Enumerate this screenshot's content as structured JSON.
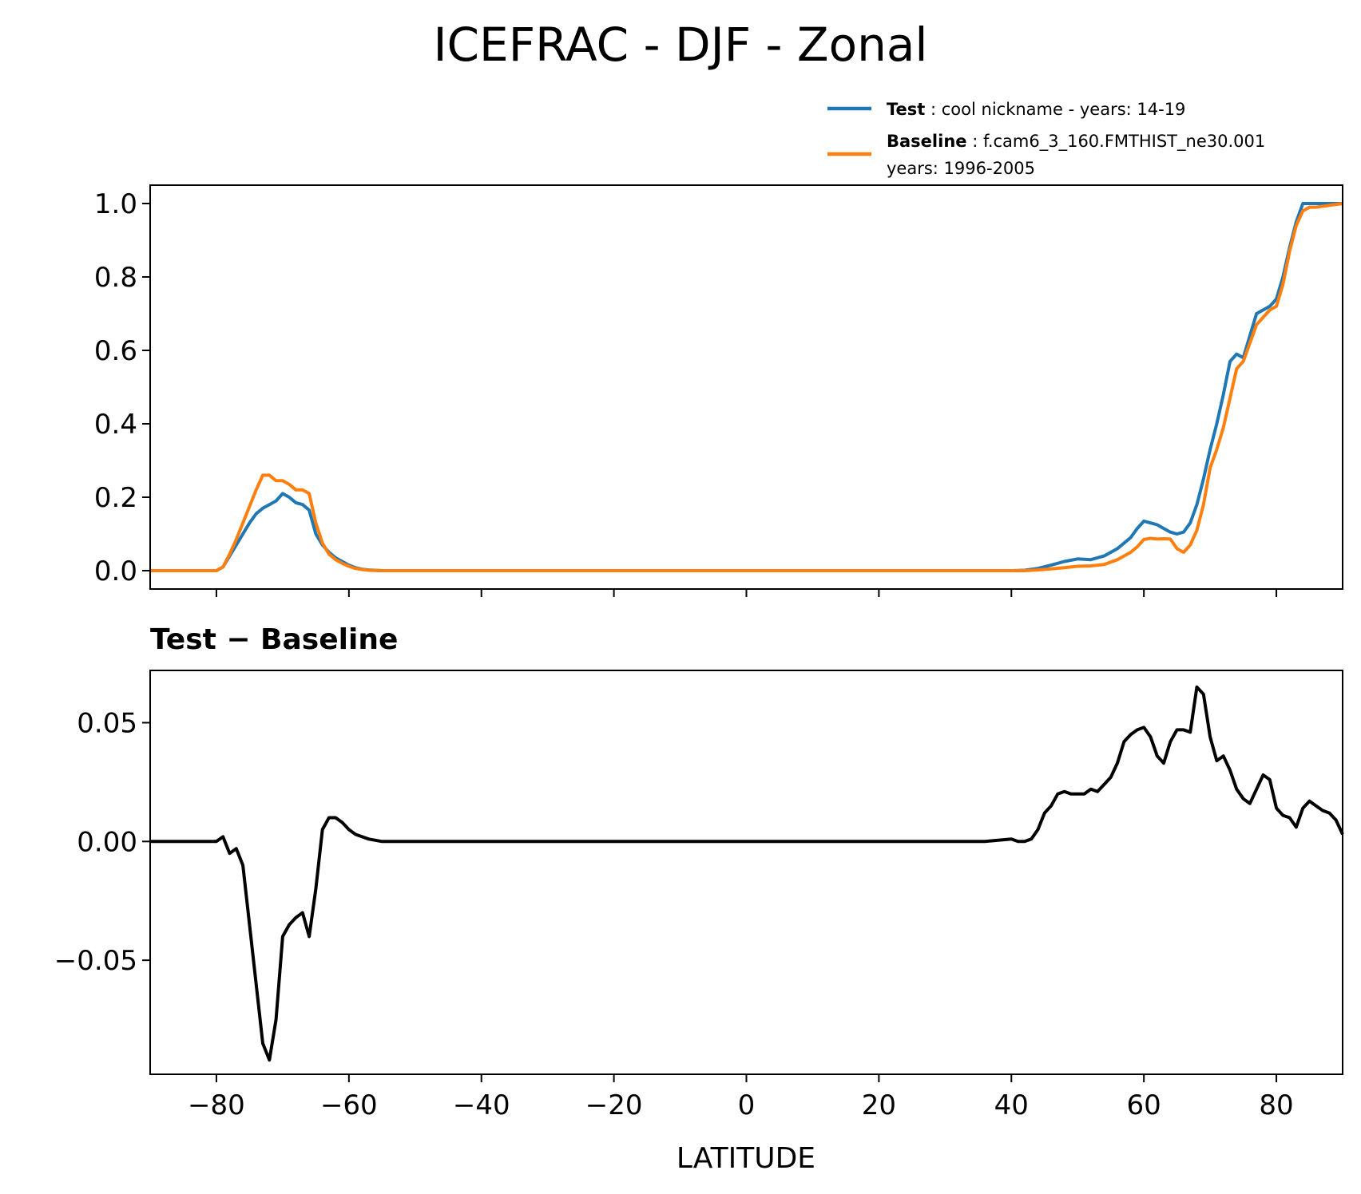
{
  "title": "ICEFRAC - DJF - Zonal",
  "legend": {
    "test_label": "Test",
    "test_text": ": cool nickname - years: 14-19",
    "baseline_label": "Baseline",
    "baseline_text": ": f.cam6_3_160.FMTHIST_ne30.001",
    "baseline_text2": "years: 1996-2005"
  },
  "colors": {
    "test": "#1f77b4",
    "baseline": "#ff7f0e",
    "diff": "#000000"
  },
  "chart_data": [
    {
      "type": "line",
      "xlim": [
        -90,
        90
      ],
      "ylim": [
        -0.05,
        1.05
      ],
      "yticks": [
        "0.0",
        "0.2",
        "0.4",
        "0.6",
        "0.8",
        "1.0"
      ],
      "ytick_values": [
        0,
        0.2,
        0.4,
        0.6,
        0.8,
        1.0
      ],
      "legend_position": "above top-right",
      "series": [
        {
          "name": "Test",
          "x": [
            -90,
            -80,
            -79,
            -78,
            -77,
            -76,
            -75,
            -74,
            -73,
            -72,
            -71,
            -70,
            -69,
            -68,
            -67,
            -66,
            -65,
            -64,
            -63,
            -62,
            -61,
            -60,
            -59,
            -58,
            -57,
            -55,
            -50,
            -40,
            -20,
            0,
            20,
            40,
            42,
            44,
            46,
            48,
            50,
            52,
            54,
            56,
            58,
            59,
            60,
            61,
            62,
            63,
            64,
            65,
            66,
            67,
            68,
            69,
            70,
            71,
            72,
            73,
            74,
            75,
            76,
            77,
            78,
            79,
            80,
            81,
            82,
            83,
            84,
            85,
            86,
            88,
            90
          ],
          "y": [
            0,
            0,
            0.01,
            0.04,
            0.07,
            0.1,
            0.13,
            0.155,
            0.17,
            0.18,
            0.19,
            0.21,
            0.2,
            0.185,
            0.18,
            0.165,
            0.1,
            0.07,
            0.05,
            0.035,
            0.025,
            0.015,
            0.008,
            0.004,
            0.002,
            0,
            0,
            0,
            0,
            0,
            0,
            0,
            0.001,
            0.006,
            0.015,
            0.025,
            0.032,
            0.03,
            0.04,
            0.06,
            0.09,
            0.115,
            0.135,
            0.13,
            0.125,
            0.115,
            0.105,
            0.1,
            0.105,
            0.13,
            0.18,
            0.25,
            0.33,
            0.4,
            0.48,
            0.57,
            0.59,
            0.58,
            0.64,
            0.7,
            0.71,
            0.72,
            0.74,
            0.8,
            0.88,
            0.95,
            1.0,
            1.0,
            1.0,
            1.0,
            1.0
          ]
        },
        {
          "name": "Baseline",
          "x": [
            -90,
            -80,
            -79,
            -78,
            -77,
            -76,
            -75,
            -74,
            -73,
            -72,
            -71,
            -70,
            -69,
            -68,
            -67,
            -66,
            -65,
            -64,
            -63,
            -62,
            -61,
            -60,
            -59,
            -58,
            -57,
            -55,
            -50,
            -40,
            -20,
            0,
            20,
            40,
            42,
            44,
            46,
            48,
            50,
            52,
            54,
            56,
            58,
            59,
            60,
            61,
            62,
            63,
            64,
            65,
            66,
            67,
            68,
            69,
            70,
            71,
            72,
            73,
            74,
            75,
            76,
            77,
            78,
            79,
            80,
            81,
            82,
            83,
            84,
            85,
            86,
            88,
            90
          ],
          "y": [
            0,
            0,
            0.01,
            0.045,
            0.085,
            0.13,
            0.175,
            0.22,
            0.26,
            0.26,
            0.245,
            0.245,
            0.235,
            0.22,
            0.22,
            0.21,
            0.13,
            0.075,
            0.045,
            0.03,
            0.02,
            0.012,
            0.006,
            0.003,
            0.001,
            0,
            0,
            0,
            0,
            0,
            0,
            0,
            0,
            0.002,
            0.005,
            0.008,
            0.012,
            0.013,
            0.017,
            0.03,
            0.05,
            0.065,
            0.085,
            0.088,
            0.086,
            0.087,
            0.086,
            0.06,
            0.05,
            0.07,
            0.11,
            0.18,
            0.28,
            0.33,
            0.39,
            0.47,
            0.55,
            0.57,
            0.62,
            0.67,
            0.69,
            0.71,
            0.72,
            0.78,
            0.87,
            0.94,
            0.98,
            0.99,
            0.99,
            0.995,
            1.0
          ]
        }
      ]
    },
    {
      "type": "line",
      "title": "Test − Baseline",
      "xlabel": "LATITUDE",
      "xlim": [
        -90,
        90
      ],
      "ylim": [
        -0.098,
        0.072
      ],
      "xticks": [
        "−80",
        "−60",
        "−40",
        "−20",
        "0",
        "20",
        "40",
        "60",
        "80"
      ],
      "xtick_values": [
        -80,
        -60,
        -40,
        -20,
        0,
        20,
        40,
        60,
        80
      ],
      "yticks": [
        "−0.05",
        "0.00",
        "0.05"
      ],
      "ytick_values": [
        -0.05,
        0,
        0.05
      ],
      "series": [
        {
          "x": [
            -90,
            -80,
            -79,
            -78,
            -77,
            -76,
            -75,
            -74,
            -73,
            -72,
            -71,
            -70,
            -69,
            -68,
            -67,
            -66,
            -65,
            -64,
            -63,
            -62,
            -61,
            -60,
            -59,
            -58,
            -57,
            -56,
            -55,
            -54,
            -50,
            -40,
            -20,
            0,
            20,
            36,
            38,
            40,
            41,
            42,
            43,
            44,
            45,
            46,
            47,
            48,
            49,
            50,
            51,
            52,
            53,
            54,
            55,
            56,
            57,
            58,
            59,
            60,
            61,
            62,
            63,
            64,
            65,
            66,
            67,
            68,
            69,
            70,
            71,
            72,
            73,
            74,
            75,
            76,
            77,
            78,
            79,
            80,
            81,
            82,
            83,
            84,
            85,
            86,
            87,
            88,
            89,
            90
          ],
          "y": [
            0,
            0,
            0.002,
            -0.005,
            -0.003,
            -0.01,
            -0.035,
            -0.06,
            -0.085,
            -0.092,
            -0.075,
            -0.04,
            -0.035,
            -0.032,
            -0.03,
            -0.04,
            -0.02,
            0.005,
            0.01,
            0.01,
            0.008,
            0.005,
            0.003,
            0.002,
            0.001,
            0.0005,
            0,
            0,
            0,
            0,
            0,
            0,
            0,
            0,
            0.0005,
            0.001,
            0,
            0,
            0.001,
            0.005,
            0.012,
            0.015,
            0.02,
            0.021,
            0.02,
            0.02,
            0.02,
            0.022,
            0.021,
            0.024,
            0.027,
            0.033,
            0.042,
            0.045,
            0.047,
            0.048,
            0.044,
            0.036,
            0.033,
            0.042,
            0.047,
            0.047,
            0.046,
            0.065,
            0.062,
            0.044,
            0.034,
            0.036,
            0.03,
            0.022,
            0.018,
            0.016,
            0.022,
            0.028,
            0.026,
            0.014,
            0.011,
            0.01,
            0.006,
            0.014,
            0.017,
            0.015,
            0.013,
            0.012,
            0.009,
            0.003
          ]
        }
      ]
    }
  ]
}
